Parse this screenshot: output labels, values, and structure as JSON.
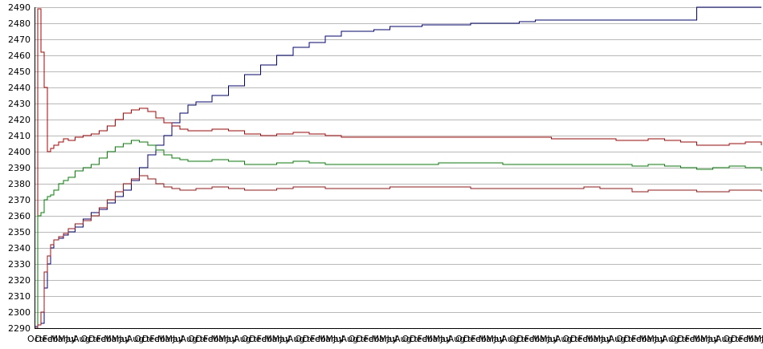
{
  "chart_data": {
    "type": "line",
    "title": "",
    "xlabel": "",
    "ylabel": "",
    "ylim": [
      2290,
      2490
    ],
    "yticks": [
      2290,
      2300,
      2310,
      2320,
      2330,
      2340,
      2350,
      2360,
      2370,
      2380,
      2390,
      2400,
      2410,
      2420,
      2430,
      2440,
      2450,
      2460,
      2470,
      2480,
      2490
    ],
    "x_tick_labels": [
      "Oct",
      "Dec",
      "Feb",
      "Mar",
      "May",
      "Jul",
      "Aug",
      "Oct",
      "Dec",
      "Feb",
      "Mar",
      "May",
      "Jul",
      "Aug",
      "Oct",
      "Dec",
      "Feb",
      "Mar",
      "May",
      "Jul",
      "Aug",
      "Oct",
      "Dec",
      "Feb",
      "Mar",
      "May",
      "Jul",
      "Aug",
      "Oct",
      "Dec",
      "Feb",
      "Mar",
      "May",
      "Jul",
      "Aug",
      "Oct",
      "Dec",
      "Feb",
      "Mar",
      "May",
      "Jul",
      "Aug",
      "Oct",
      "Dec",
      "Feb",
      "Mar",
      "May",
      "Jul",
      "Aug",
      "Oct",
      "Dec",
      "Feb",
      "Mar",
      "May",
      "Jul",
      "Aug",
      "Oct",
      "Dec",
      "Feb",
      "Mar",
      "May",
      "Jul",
      "Aug",
      "Oct",
      "Dec",
      "Feb",
      "Mar",
      "May",
      "Jul",
      "Aug",
      "Oct",
      "Dec",
      "Feb",
      "Mar",
      "May",
      "Jul",
      "Aug",
      "Oct",
      "Dec",
      "Feb",
      "Mar",
      "May",
      "Jul",
      "Aug",
      "Oct",
      "Dec",
      "Feb",
      "Mar",
      "May",
      "Jul",
      "Aug",
      "Oct",
      "Dec",
      "Feb",
      "Mar",
      "May",
      "Jul"
    ],
    "grid": true,
    "legend": "none",
    "x": [
      0,
      2,
      4,
      6,
      8,
      10,
      12,
      15,
      18,
      21,
      25,
      30,
      35,
      40,
      45,
      50,
      55,
      60,
      65,
      70,
      75,
      80,
      85,
      90,
      95,
      100,
      110,
      120,
      130,
      140,
      150,
      160,
      170,
      180,
      190,
      200,
      210,
      220,
      230,
      240,
      250,
      260,
      270,
      280,
      290,
      300,
      310,
      320,
      330,
      340,
      350,
      360,
      370,
      380,
      390,
      400,
      410,
      420,
      430,
      440,
      450
    ],
    "series": [
      {
        "color": "#000080",
        "values": [
          2291,
          2292,
          2293,
          2315,
          2330,
          2340,
          2345,
          2346,
          2348,
          2350,
          2353,
          2358,
          2362,
          2364,
          2368,
          2372,
          2376,
          2382,
          2390,
          2398,
          2404,
          2410,
          2418,
          2424,
          2429,
          2431,
          2435,
          2441,
          2448,
          2454,
          2460,
          2465,
          2468,
          2472,
          2475,
          2475,
          2476,
          2478,
          2478,
          2479,
          2479,
          2479,
          2480,
          2480,
          2480,
          2481,
          2482,
          2482,
          2482,
          2482,
          2482,
          2482,
          2482,
          2482,
          2482,
          2482,
          2490,
          2490,
          2490,
          2490,
          2490
        ]
      },
      {
        "color": "#b00000",
        "values": [
          2290,
          2489,
          2462,
          2440,
          2400,
          2402,
          2404,
          2406,
          2408,
          2407,
          2409,
          2410,
          2411,
          2413,
          2416,
          2420,
          2424,
          2426,
          2427,
          2425,
          2421,
          2418,
          2416,
          2414,
          2413,
          2413,
          2414,
          2413,
          2411,
          2410,
          2411,
          2412,
          2411,
          2410,
          2409,
          2409,
          2409,
          2409,
          2409,
          2409,
          2409,
          2409,
          2409,
          2409,
          2409,
          2409,
          2409,
          2408,
          2408,
          2408,
          2408,
          2407,
          2407,
          2408,
          2407,
          2406,
          2404,
          2404,
          2405,
          2406,
          2404
        ]
      },
      {
        "color": "#008000",
        "values": [
          2290,
          2360,
          2362,
          2370,
          2372,
          2373,
          2376,
          2380,
          2382,
          2384,
          2388,
          2390,
          2392,
          2396,
          2400,
          2403,
          2405,
          2407,
          2406,
          2404,
          2401,
          2398,
          2396,
          2395,
          2394,
          2394,
          2395,
          2394,
          2392,
          2392,
          2393,
          2394,
          2393,
          2392,
          2392,
          2392,
          2392,
          2392,
          2392,
          2392,
          2393,
          2393,
          2393,
          2393,
          2392,
          2392,
          2392,
          2392,
          2392,
          2392,
          2392,
          2392,
          2391,
          2392,
          2391,
          2390,
          2389,
          2390,
          2391,
          2390,
          2388
        ]
      },
      {
        "color": "#a01010",
        "values": [
          2290,
          2292,
          2300,
          2325,
          2335,
          2342,
          2345,
          2347,
          2349,
          2352,
          2355,
          2357,
          2360,
          2365,
          2370,
          2375,
          2380,
          2383,
          2385,
          2383,
          2380,
          2378,
          2377,
          2376,
          2376,
          2377,
          2378,
          2377,
          2376,
          2376,
          2377,
          2378,
          2378,
          2377,
          2377,
          2377,
          2377,
          2378,
          2378,
          2378,
          2378,
          2378,
          2377,
          2377,
          2377,
          2377,
          2377,
          2377,
          2377,
          2378,
          2377,
          2377,
          2375,
          2376,
          2376,
          2376,
          2375,
          2375,
          2376,
          2376,
          2375
        ]
      }
    ]
  }
}
